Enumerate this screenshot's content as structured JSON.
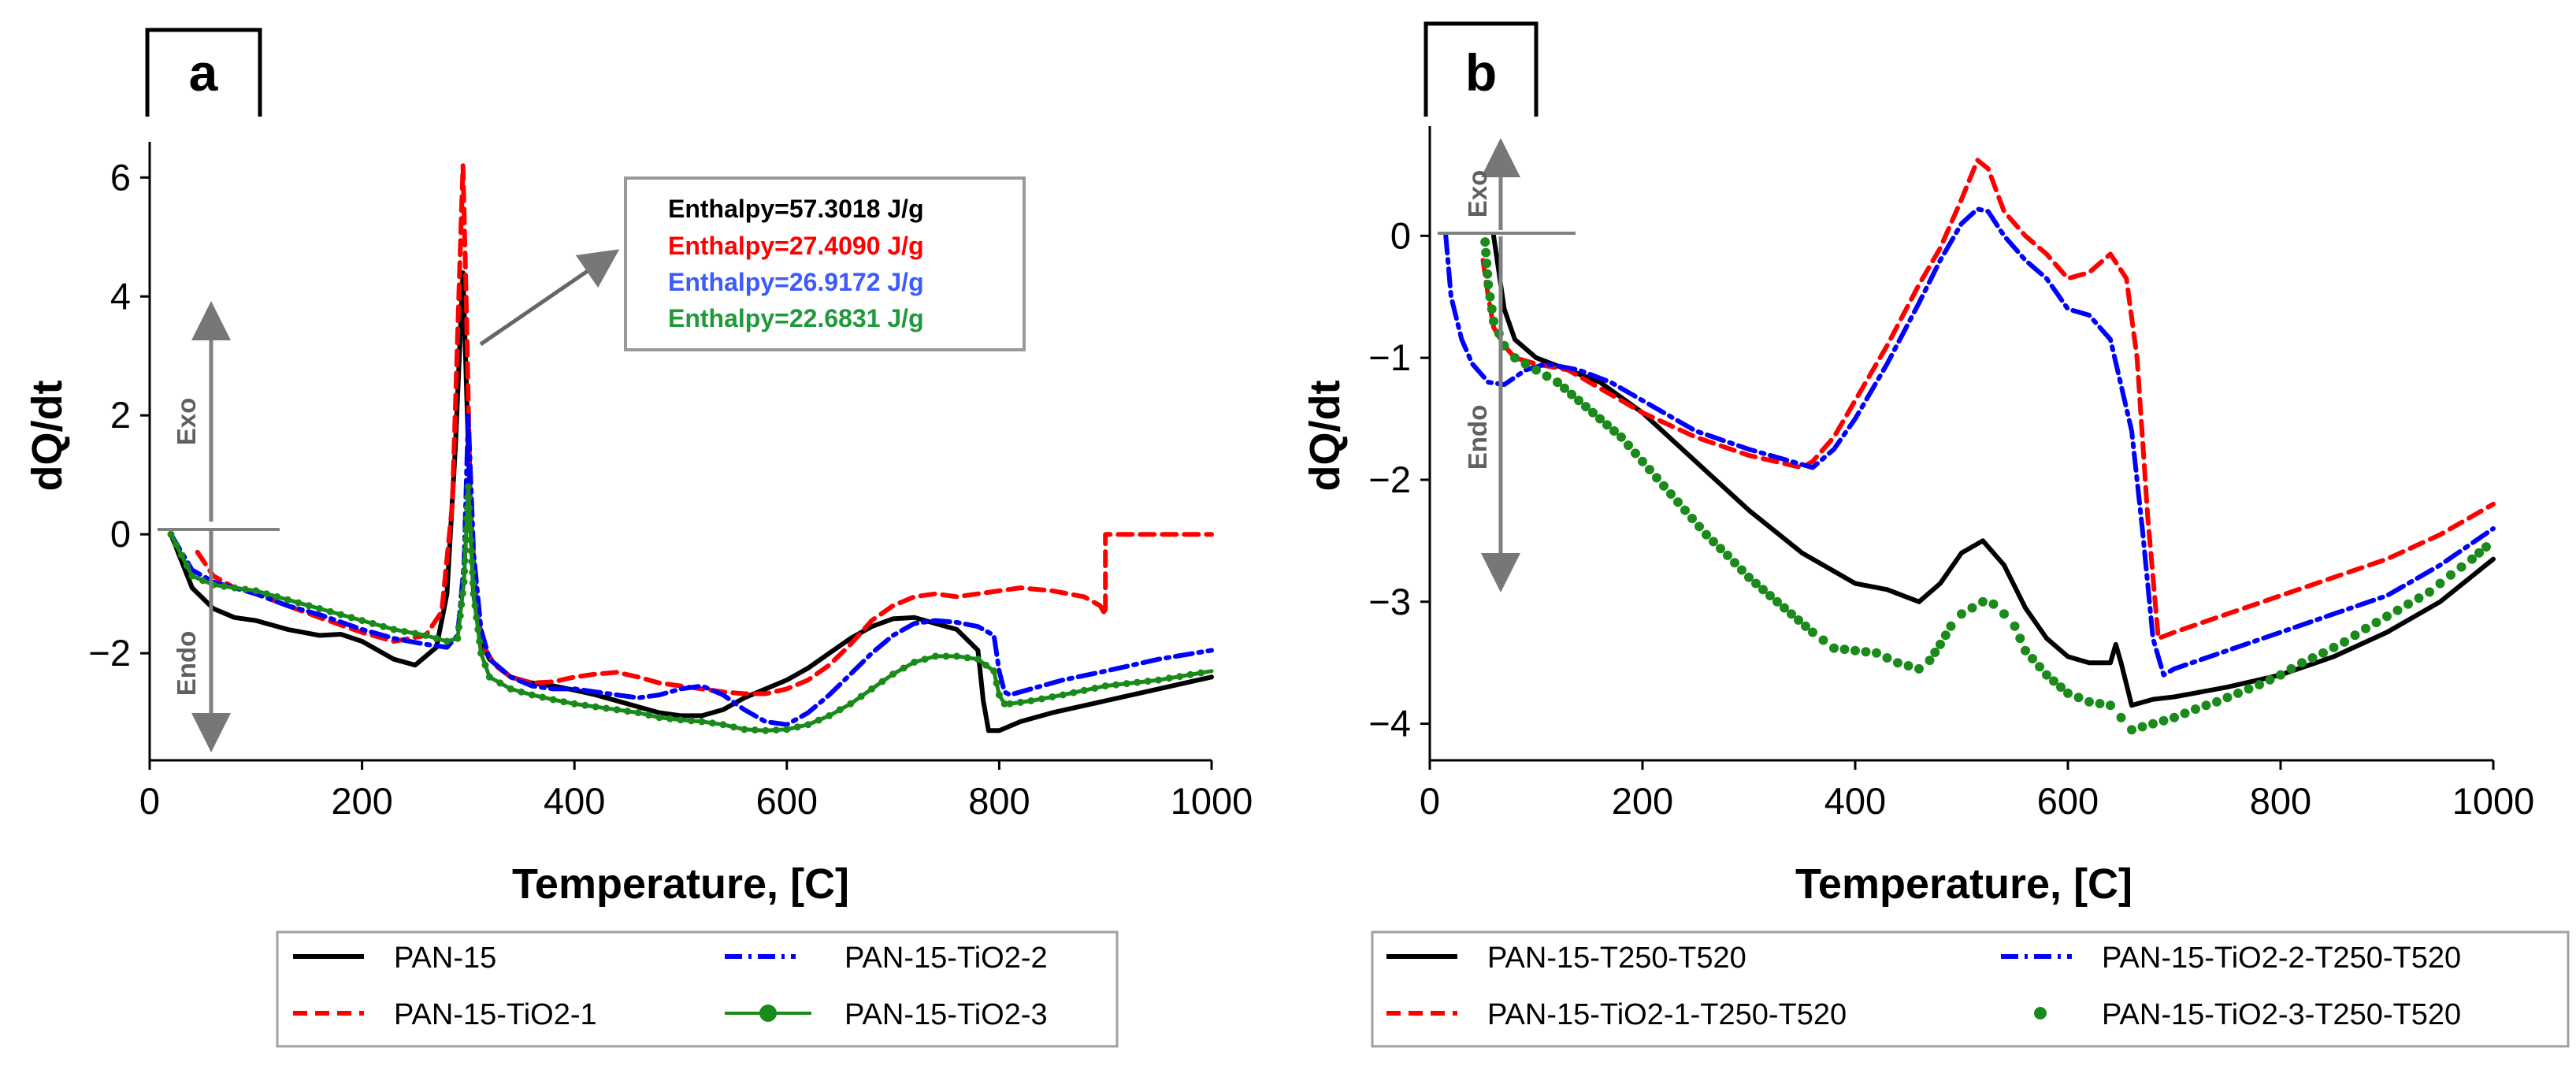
{
  "figure": {
    "annotations": {
      "exo": "Exo",
      "endo": "Endo"
    },
    "enthalpy_colors": [
      "#000000",
      "#ff0000",
      "#3b5bff",
      "#1f9a3a"
    ]
  },
  "chart_data": [
    {
      "type": "line",
      "panel_label": "a",
      "xlabel": "Temperature, [C]",
      "ylabel": "dQ/dt",
      "xlim": [
        0,
        1000
      ],
      "ylim": [
        -3.8,
        6.6
      ],
      "xticks": [
        0,
        200,
        400,
        600,
        800,
        1000
      ],
      "yticks": [
        -2,
        0,
        2,
        4,
        6
      ],
      "ytick_labels": [
        "−2",
        "0",
        "2",
        "4",
        "6"
      ],
      "legend_position": "bottom",
      "enthalpy_labels": [
        "Enthalpy=57.3018 J/g",
        "Enthalpy=27.4090 J/g",
        "Enthalpy=26.9172 J/g",
        "Enthalpy=22.6831 J/g"
      ],
      "series": [
        {
          "name": "PAN-15",
          "color": "#000000",
          "style": "solid",
          "x": [
            20,
            40,
            60,
            80,
            100,
            130,
            160,
            180,
            200,
            230,
            250,
            270,
            280,
            288,
            295,
            300,
            305,
            312,
            320,
            340,
            360,
            380,
            400,
            420,
            440,
            460,
            480,
            500,
            520,
            540,
            560,
            580,
            600,
            620,
            640,
            660,
            680,
            700,
            720,
            740,
            760,
            780,
            785,
            790,
            800,
            820,
            850,
            900,
            950,
            1000
          ],
          "y": [
            0,
            -0.9,
            -1.25,
            -1.4,
            -1.45,
            -1.6,
            -1.7,
            -1.68,
            -1.8,
            -2.1,
            -2.2,
            -1.9,
            -1.0,
            1.5,
            4.4,
            1.5,
            -1.0,
            -1.8,
            -2.1,
            -2.4,
            -2.5,
            -2.55,
            -2.62,
            -2.7,
            -2.8,
            -2.9,
            -3.0,
            -3.05,
            -3.05,
            -2.95,
            -2.75,
            -2.6,
            -2.45,
            -2.25,
            -2.0,
            -1.75,
            -1.55,
            -1.42,
            -1.4,
            -1.5,
            -1.6,
            -1.95,
            -2.8,
            -3.3,
            -3.3,
            -3.15,
            -3.0,
            -2.8,
            -2.6,
            -2.4
          ]
        },
        {
          "name": "PAN-15-TiO2-1",
          "color": "#ff0000",
          "style": "dashed",
          "x": [
            45,
            60,
            80,
            100,
            130,
            160,
            200,
            230,
            260,
            275,
            285,
            292,
            295,
            298,
            302,
            308,
            315,
            325,
            340,
            360,
            380,
            400,
            420,
            440,
            460,
            480,
            500,
            520,
            540,
            560,
            580,
            600,
            620,
            640,
            660,
            680,
            700,
            720,
            740,
            760,
            780,
            800,
            820,
            850,
            880,
            895,
            900,
            900,
            920,
            950,
            1000
          ],
          "y": [
            -0.3,
            -0.7,
            -0.9,
            -1.0,
            -1.2,
            -1.4,
            -1.65,
            -1.8,
            -1.7,
            -1.3,
            0.5,
            4.5,
            6.2,
            4.0,
            0.5,
            -1.3,
            -1.9,
            -2.2,
            -2.4,
            -2.5,
            -2.48,
            -2.4,
            -2.35,
            -2.32,
            -2.4,
            -2.5,
            -2.55,
            -2.6,
            -2.65,
            -2.68,
            -2.68,
            -2.6,
            -2.45,
            -2.2,
            -1.85,
            -1.45,
            -1.2,
            -1.05,
            -1.0,
            -1.05,
            -1.0,
            -0.95,
            -0.9,
            -0.95,
            -1.05,
            -1.2,
            -1.35,
            0.0,
            0.0,
            0.0,
            0.0
          ]
        },
        {
          "name": "PAN-15-TiO2-2",
          "color": "#0000ff",
          "style": "dashdot",
          "x": [
            20,
            40,
            60,
            80,
            100,
            130,
            160,
            200,
            230,
            260,
            280,
            290,
            296,
            300,
            305,
            312,
            320,
            340,
            360,
            380,
            400,
            420,
            440,
            460,
            480,
            500,
            520,
            540,
            560,
            580,
            600,
            620,
            640,
            660,
            680,
            700,
            720,
            740,
            760,
            780,
            795,
            800,
            805,
            810,
            830,
            860,
            900,
            950,
            1000
          ],
          "y": [
            0,
            -0.6,
            -0.8,
            -0.9,
            -1.0,
            -1.2,
            -1.35,
            -1.6,
            -1.75,
            -1.85,
            -1.9,
            -1.7,
            -0.5,
            2.0,
            -0.3,
            -1.6,
            -2.1,
            -2.4,
            -2.55,
            -2.6,
            -2.6,
            -2.65,
            -2.7,
            -2.75,
            -2.7,
            -2.6,
            -2.55,
            -2.7,
            -2.95,
            -3.15,
            -3.2,
            -3.0,
            -2.7,
            -2.35,
            -2.0,
            -1.7,
            -1.5,
            -1.45,
            -1.48,
            -1.55,
            -1.7,
            -2.3,
            -2.65,
            -2.7,
            -2.6,
            -2.45,
            -2.3,
            -2.1,
            -1.95
          ]
        },
        {
          "name": "PAN-15-TiO2-3",
          "color": "#1a8a1a",
          "style": "solid-marker",
          "x": [
            20,
            40,
            60,
            80,
            100,
            130,
            160,
            200,
            230,
            260,
            280,
            290,
            296,
            300,
            305,
            312,
            320,
            340,
            360,
            380,
            400,
            420,
            440,
            460,
            480,
            500,
            520,
            540,
            560,
            580,
            600,
            620,
            640,
            660,
            680,
            700,
            720,
            740,
            760,
            780,
            795,
            800,
            805,
            810,
            830,
            860,
            900,
            950,
            1000
          ],
          "y": [
            0,
            -0.7,
            -0.85,
            -0.9,
            -0.95,
            -1.1,
            -1.25,
            -1.45,
            -1.6,
            -1.7,
            -1.8,
            -1.75,
            -0.8,
            0.8,
            -1.0,
            -2.0,
            -2.4,
            -2.6,
            -2.7,
            -2.78,
            -2.85,
            -2.9,
            -2.95,
            -3.0,
            -3.08,
            -3.12,
            -3.15,
            -3.2,
            -3.28,
            -3.3,
            -3.28,
            -3.2,
            -3.05,
            -2.85,
            -2.6,
            -2.35,
            -2.15,
            -2.05,
            -2.05,
            -2.1,
            -2.3,
            -2.7,
            -2.85,
            -2.85,
            -2.8,
            -2.7,
            -2.55,
            -2.45,
            -2.3
          ]
        }
      ]
    },
    {
      "type": "line",
      "panel_label": "b",
      "xlabel": "Temperature, [C]",
      "ylabel": "dQ/dt",
      "xlim": [
        0,
        1000
      ],
      "ylim": [
        -4.3,
        0.9
      ],
      "xticks": [
        0,
        200,
        400,
        600,
        800,
        1000
      ],
      "yticks": [
        -4,
        -3,
        -2,
        -1,
        0
      ],
      "ytick_labels": [
        "−4",
        "−3",
        "−2",
        "−1",
        "0"
      ],
      "legend_position": "bottom",
      "series": [
        {
          "name": "PAN-15-T250-T520",
          "color": "#000000",
          "style": "solid",
          "x": [
            60,
            65,
            70,
            80,
            100,
            130,
            160,
            200,
            250,
            300,
            350,
            380,
            400,
            430,
            460,
            480,
            500,
            520,
            540,
            560,
            580,
            600,
            620,
            640,
            645,
            650,
            660,
            680,
            700,
            750,
            800,
            850,
            900,
            950,
            1000
          ],
          "y": [
            0,
            -0.3,
            -0.6,
            -0.85,
            -1.0,
            -1.1,
            -1.2,
            -1.45,
            -1.85,
            -2.25,
            -2.6,
            -2.75,
            -2.85,
            -2.9,
            -3.0,
            -2.85,
            -2.6,
            -2.5,
            -2.7,
            -3.05,
            -3.3,
            -3.45,
            -3.5,
            -3.5,
            -3.35,
            -3.5,
            -3.85,
            -3.8,
            -3.78,
            -3.7,
            -3.6,
            -3.45,
            -3.25,
            -3.0,
            -2.65
          ]
        },
        {
          "name": "PAN-15-TiO2-1-T250-T520",
          "color": "#ff0000",
          "style": "dashed",
          "x": [
            50,
            55,
            60,
            70,
            80,
            100,
            130,
            160,
            200,
            250,
            300,
            350,
            360,
            380,
            400,
            430,
            460,
            480,
            500,
            515,
            525,
            540,
            560,
            580,
            600,
            620,
            640,
            655,
            665,
            675,
            685,
            700,
            750,
            800,
            850,
            900,
            950,
            1000
          ],
          "y": [
            -0.2,
            -0.5,
            -0.75,
            -0.9,
            -1.0,
            -1.05,
            -1.1,
            -1.25,
            -1.45,
            -1.65,
            -1.8,
            -1.9,
            -1.85,
            -1.65,
            -1.35,
            -0.9,
            -0.4,
            -0.1,
            0.3,
            0.62,
            0.55,
            0.2,
            0.0,
            -0.15,
            -0.35,
            -0.3,
            -0.15,
            -0.35,
            -1.0,
            -2.3,
            -3.3,
            -3.25,
            -3.1,
            -2.95,
            -2.8,
            -2.65,
            -2.45,
            -2.2
          ]
        },
        {
          "name": "PAN-15-TiO2-2-T250-T520",
          "color": "#0000ff",
          "style": "dashdot",
          "x": [
            15,
            20,
            30,
            40,
            55,
            70,
            90,
            110,
            140,
            170,
            200,
            250,
            300,
            340,
            360,
            380,
            400,
            430,
            460,
            480,
            500,
            515,
            525,
            540,
            560,
            580,
            600,
            620,
            640,
            660,
            670,
            680,
            690,
            700,
            750,
            800,
            850,
            900,
            950,
            1000
          ],
          "y": [
            0,
            -0.5,
            -0.85,
            -1.05,
            -1.2,
            -1.22,
            -1.1,
            -1.05,
            -1.1,
            -1.2,
            -1.35,
            -1.6,
            -1.75,
            -1.85,
            -1.9,
            -1.75,
            -1.5,
            -1.05,
            -0.55,
            -0.2,
            0.1,
            0.22,
            0.2,
            0.0,
            -0.2,
            -0.35,
            -0.6,
            -0.65,
            -0.85,
            -1.6,
            -2.4,
            -3.3,
            -3.6,
            -3.55,
            -3.4,
            -3.25,
            -3.1,
            -2.95,
            -2.7,
            -2.4
          ]
        },
        {
          "name": "PAN-15-TiO2-3-T250-T520",
          "color": "#1a8a1a",
          "style": "dots",
          "x": [
            52,
            55,
            60,
            70,
            80,
            90,
            100,
            120,
            140,
            160,
            180,
            200,
            220,
            240,
            260,
            280,
            300,
            320,
            340,
            360,
            380,
            400,
            420,
            440,
            460,
            470,
            480,
            490,
            500,
            510,
            520,
            530,
            540,
            550,
            560,
            580,
            600,
            620,
            640,
            650,
            660,
            680,
            700,
            720,
            740,
            760,
            780,
            800,
            820,
            840,
            860,
            880,
            900,
            920,
            940,
            960,
            980,
            1000
          ],
          "y": [
            -0.05,
            -0.4,
            -0.7,
            -0.9,
            -1.0,
            -1.05,
            -1.1,
            -1.2,
            -1.35,
            -1.5,
            -1.65,
            -1.85,
            -2.05,
            -2.25,
            -2.45,
            -2.62,
            -2.8,
            -2.95,
            -3.1,
            -3.25,
            -3.38,
            -3.4,
            -3.42,
            -3.5,
            -3.55,
            -3.48,
            -3.35,
            -3.2,
            -3.1,
            -3.05,
            -3.0,
            -3.02,
            -3.1,
            -3.2,
            -3.4,
            -3.6,
            -3.75,
            -3.82,
            -3.85,
            -3.95,
            -4.05,
            -4.0,
            -3.95,
            -3.88,
            -3.82,
            -3.75,
            -3.68,
            -3.6,
            -3.5,
            -3.42,
            -3.33,
            -3.22,
            -3.12,
            -3.02,
            -2.92,
            -2.78,
            -2.65,
            -2.5
          ]
        }
      ]
    }
  ]
}
